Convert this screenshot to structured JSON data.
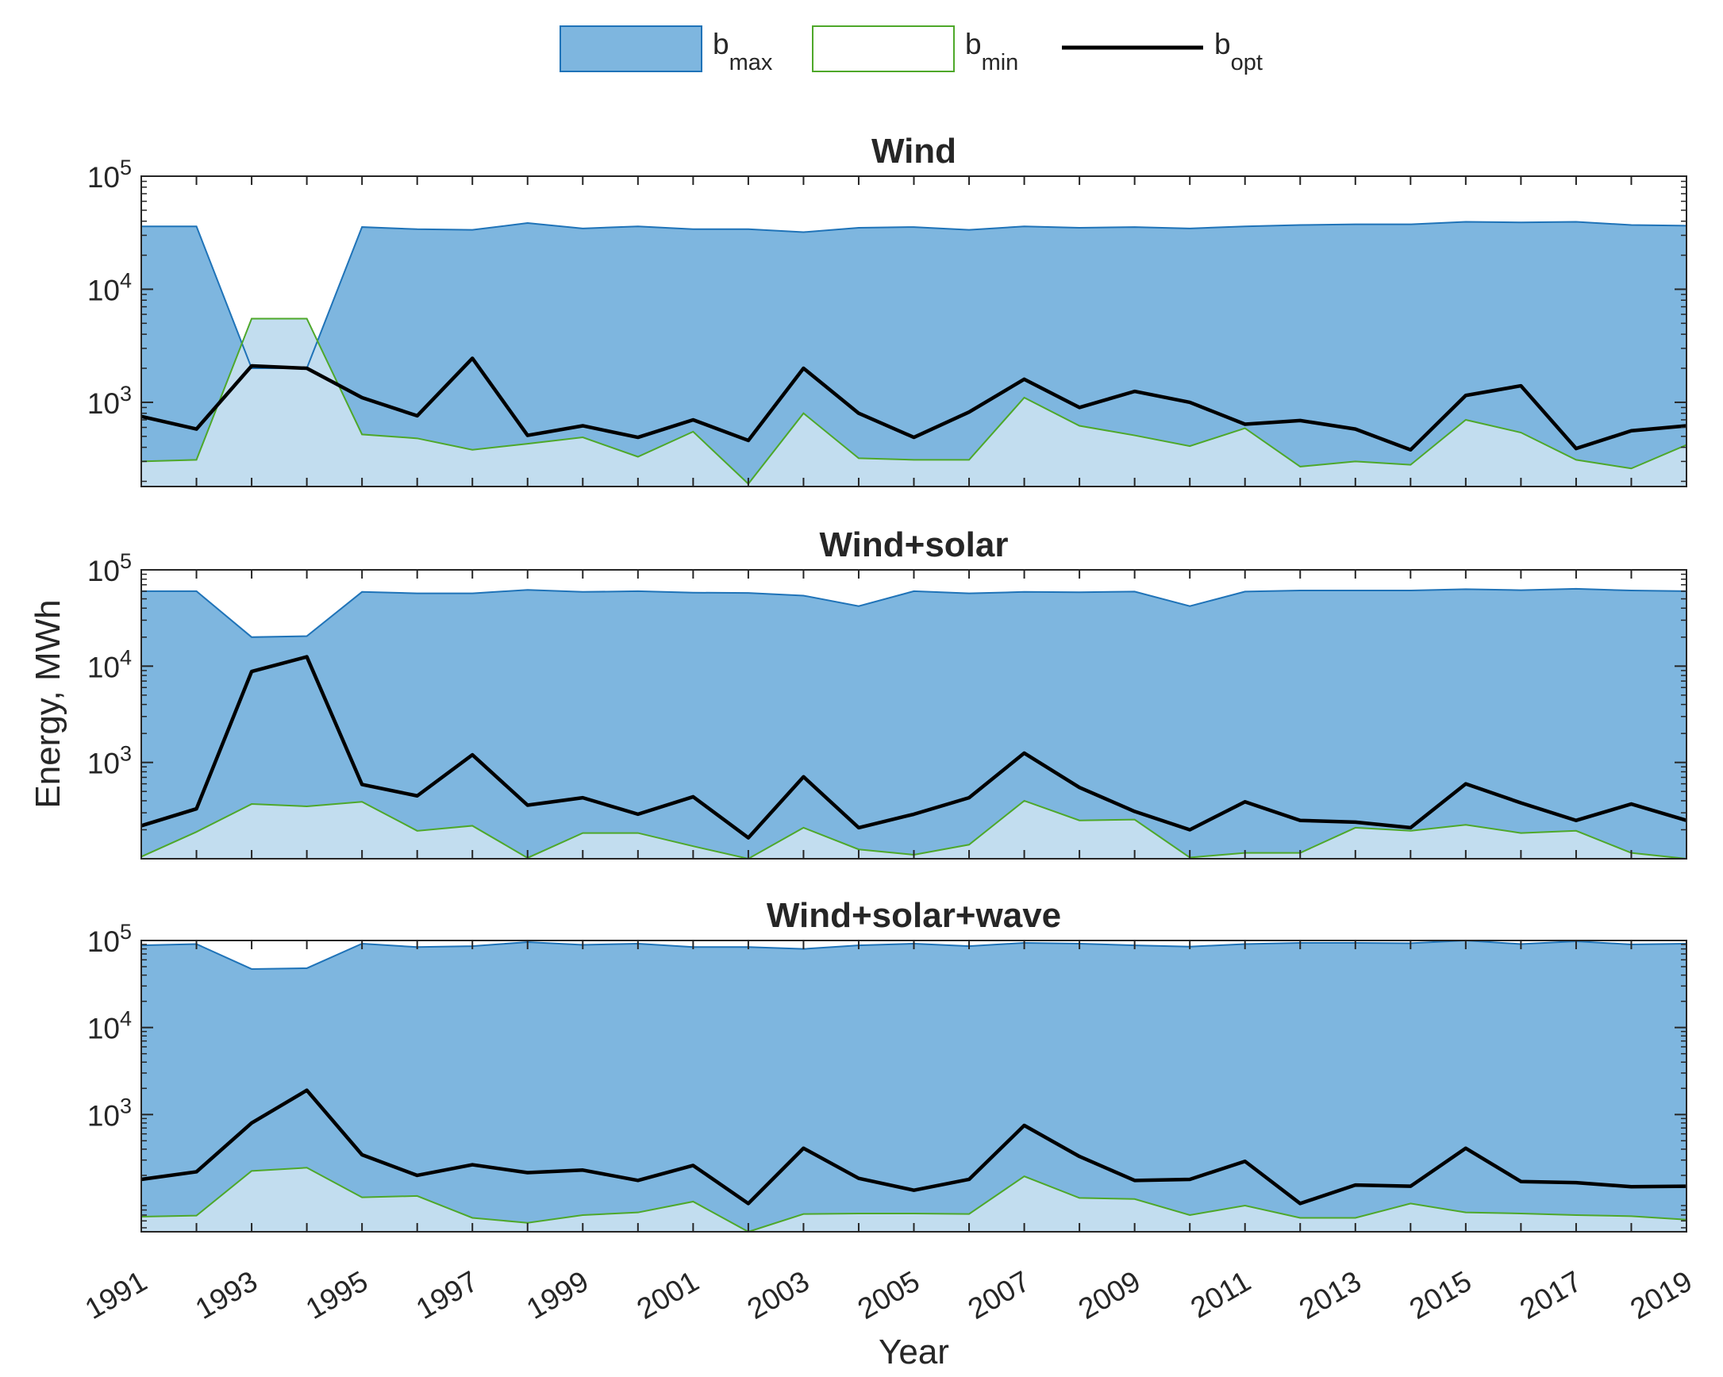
{
  "figure": {
    "xlabel": "Year",
    "ylabel": "Energy, MWh"
  },
  "legend": {
    "entries": [
      {
        "name": "b_max",
        "base": "b",
        "sub": "max",
        "style": "area",
        "fill": "#7eb6df",
        "stroke": "#1f73b8"
      },
      {
        "name": "b_min",
        "base": "b",
        "sub": "min",
        "style": "area",
        "fill": "#ffffff",
        "stroke": "#4ea82a"
      },
      {
        "name": "b_opt",
        "base": "b",
        "sub": "opt",
        "style": "line",
        "stroke": "#000000"
      }
    ]
  },
  "colors": {
    "bmax_fill": "#7eb6df",
    "bmax_line": "#1f73b8",
    "bmin_fill": "#c2ddef",
    "bmin_line": "#4ea82a",
    "bopt_line": "#000000"
  },
  "chart_data": [
    {
      "type": "area",
      "title": "Wind",
      "yscale": "log",
      "ylim": [
        180,
        100000
      ],
      "yticks": [
        1000,
        10000,
        100000
      ],
      "ytick_labels": [
        {
          "base": "10",
          "exp": "3"
        },
        {
          "base": "10",
          "exp": "4"
        },
        {
          "base": "10",
          "exp": "5"
        }
      ],
      "x": [
        1991,
        1992,
        1993,
        1994,
        1995,
        1996,
        1997,
        1998,
        1999,
        2000,
        2001,
        2002,
        2003,
        2004,
        2005,
        2006,
        2007,
        2008,
        2009,
        2010,
        2011,
        2012,
        2013,
        2014,
        2015,
        2016,
        2017,
        2018,
        2019
      ],
      "series": [
        {
          "name": "b_max",
          "values": [
            36000,
            36000,
            2000,
            2000,
            35500,
            34000,
            33500,
            38500,
            34500,
            36000,
            34000,
            34000,
            32000,
            35000,
            35500,
            33500,
            36000,
            35000,
            35500,
            34500,
            36000,
            37000,
            37500,
            37500,
            39500,
            39000,
            39500,
            37000,
            36500
          ]
        },
        {
          "name": "b_min",
          "values": [
            300,
            310,
            5500,
            5500,
            520,
            480,
            380,
            430,
            490,
            330,
            550,
            190,
            800,
            320,
            310,
            310,
            1100,
            620,
            510,
            410,
            590,
            270,
            300,
            280,
            700,
            540,
            310,
            260,
            420
          ]
        },
        {
          "name": "b_opt",
          "values": [
            750,
            580,
            2100,
            2000,
            1100,
            760,
            2450,
            510,
            620,
            490,
            700,
            460,
            2000,
            800,
            490,
            820,
            1600,
            900,
            1250,
            1000,
            640,
            690,
            580,
            380,
            1150,
            1400,
            390,
            560,
            620
          ]
        }
      ]
    },
    {
      "type": "area",
      "title": "Wind+solar",
      "yscale": "log",
      "ylim": [
        100,
        100000
      ],
      "yticks": [
        1000,
        10000,
        100000
      ],
      "ytick_labels": [
        {
          "base": "10",
          "exp": "3"
        },
        {
          "base": "10",
          "exp": "4"
        },
        {
          "base": "10",
          "exp": "5"
        }
      ],
      "x": [
        1991,
        1992,
        1993,
        1994,
        1995,
        1996,
        1997,
        1998,
        1999,
        2000,
        2001,
        2002,
        2003,
        2004,
        2005,
        2006,
        2007,
        2008,
        2009,
        2010,
        2011,
        2012,
        2013,
        2014,
        2015,
        2016,
        2017,
        2018,
        2019
      ],
      "series": [
        {
          "name": "b_max",
          "values": [
            60000,
            60000,
            20000,
            20500,
            59000,
            57000,
            57000,
            62000,
            59000,
            60000,
            58000,
            57500,
            54000,
            42000,
            60000,
            57000,
            59000,
            58500,
            59500,
            42000,
            59500,
            61000,
            61000,
            61000,
            63000,
            61500,
            63500,
            61000,
            60000
          ]
        },
        {
          "name": "b_min",
          "values": [
            105,
            190,
            370,
            350,
            390,
            195,
            220,
            102,
            185,
            185,
            135,
            100,
            210,
            125,
            110,
            140,
            400,
            250,
            255,
            103,
            115,
            115,
            210,
            195,
            225,
            185,
            195,
            115,
            100
          ]
        },
        {
          "name": "b_opt",
          "values": [
            220,
            330,
            8800,
            12500,
            590,
            450,
            1200,
            360,
            430,
            290,
            440,
            165,
            710,
            210,
            290,
            430,
            1250,
            550,
            310,
            200,
            390,
            250,
            240,
            210,
            600,
            380,
            250,
            370,
            250
          ]
        }
      ]
    },
    {
      "type": "area",
      "title": "Wind+solar+wave",
      "yscale": "log",
      "ylim": [
        45,
        100000
      ],
      "yticks": [
        1000,
        10000,
        100000
      ],
      "ytick_labels": [
        {
          "base": "10",
          "exp": "3"
        },
        {
          "base": "10",
          "exp": "4"
        },
        {
          "base": "10",
          "exp": "5"
        }
      ],
      "x": [
        1991,
        1992,
        1993,
        1994,
        1995,
        1996,
        1997,
        1998,
        1999,
        2000,
        2001,
        2002,
        2003,
        2004,
        2005,
        2006,
        2007,
        2008,
        2009,
        2010,
        2011,
        2012,
        2013,
        2014,
        2015,
        2016,
        2017,
        2018,
        2019
      ],
      "series": [
        {
          "name": "b_max",
          "values": [
            88000,
            91000,
            47000,
            48000,
            92000,
            84000,
            86000,
            96000,
            89000,
            92000,
            84000,
            84000,
            80000,
            88000,
            92000,
            86000,
            94000,
            92000,
            88000,
            85000,
            91000,
            94000,
            94000,
            93000,
            100000,
            91000,
            98000,
            90000,
            92000
          ]
        },
        {
          "name": "b_min",
          "values": [
            67,
            69,
            225,
            245,
            112,
            116,
            65,
            57,
            70,
            75,
            100,
            45,
            72,
            73,
            73,
            72,
            195,
            110,
            107,
            70,
            90,
            65,
            65,
            95,
            75,
            73,
            70,
            68,
            62
          ]
        },
        {
          "name": "b_opt",
          "values": [
            180,
            220,
            800,
            1900,
            345,
            200,
            265,
            215,
            230,
            175,
            260,
            95,
            410,
            185,
            135,
            180,
            750,
            330,
            175,
            180,
            290,
            95,
            155,
            150,
            410,
            170,
            165,
            148,
            150
          ]
        }
      ]
    }
  ]
}
